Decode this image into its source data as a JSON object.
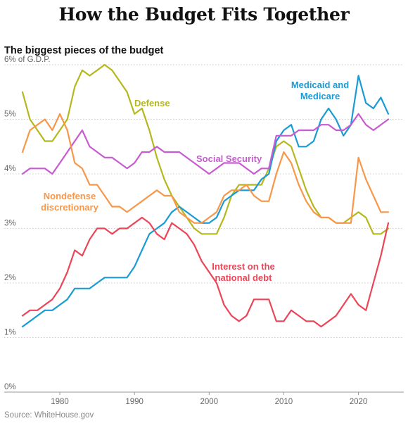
{
  "title": "How the Budget Fits Together",
  "subtitle": "The biggest pieces of the budget",
  "source": "Source: WhiteHouse.gov",
  "chart_data": {
    "type": "line",
    "title": "How the Budget Fits Together",
    "subtitle": "The biggest pieces of the budget",
    "ylabel": "% of G.D.P.",
    "xlim": [
      1975,
      2024
    ],
    "ylim": [
      0,
      6
    ],
    "y_ticks": [
      {
        "value": 0,
        "label": "0%"
      },
      {
        "value": 1,
        "label": "1%"
      },
      {
        "value": 2,
        "label": "2%"
      },
      {
        "value": 3,
        "label": "3%"
      },
      {
        "value": 4,
        "label": "4%"
      },
      {
        "value": 5,
        "label": "5%"
      },
      {
        "value": 6,
        "label": "6% of G.D.P."
      }
    ],
    "x_ticks": [
      {
        "value": 1980,
        "label": "1980"
      },
      {
        "value": 1990,
        "label": "1990"
      },
      {
        "value": 2000,
        "label": "2000"
      },
      {
        "value": 2010,
        "label": "2010"
      },
      {
        "value": 2020,
        "label": "2020"
      }
    ],
    "grid": "horizontal dotted",
    "x": [
      1975,
      1976,
      1977,
      1978,
      1979,
      1980,
      1981,
      1982,
      1983,
      1984,
      1985,
      1986,
      1987,
      1988,
      1989,
      1990,
      1991,
      1992,
      1993,
      1994,
      1995,
      1996,
      1997,
      1998,
      1999,
      2000,
      2001,
      2002,
      2003,
      2004,
      2005,
      2006,
      2007,
      2008,
      2009,
      2010,
      2011,
      2012,
      2013,
      2014,
      2015,
      2016,
      2017,
      2018,
      2019,
      2020,
      2021,
      2022,
      2023,
      2024
    ],
    "series": [
      {
        "name": "Defense",
        "label_lines": [
          "Defense"
        ],
        "color": "#b5b81c",
        "values": [
          5.5,
          5.0,
          4.8,
          4.6,
          4.6,
          4.8,
          5.0,
          5.6,
          5.9,
          5.8,
          5.9,
          6.0,
          5.9,
          5.7,
          5.5,
          5.1,
          5.2,
          4.8,
          4.3,
          3.9,
          3.6,
          3.4,
          3.2,
          3.0,
          2.9,
          2.9,
          2.9,
          3.2,
          3.6,
          3.8,
          3.8,
          3.8,
          3.8,
          4.1,
          4.5,
          4.6,
          4.5,
          4.1,
          3.7,
          3.4,
          3.2,
          3.2,
          3.1,
          3.1,
          3.2,
          3.3,
          3.2,
          2.9,
          2.9,
          3.0
        ]
      },
      {
        "name": "Medicaid and Medicare",
        "label_lines": [
          "Medicaid and",
          "Medicare"
        ],
        "color": "#1a9bd4",
        "values": [
          1.2,
          1.3,
          1.4,
          1.5,
          1.5,
          1.6,
          1.7,
          1.9,
          1.9,
          1.9,
          2.0,
          2.1,
          2.1,
          2.1,
          2.1,
          2.3,
          2.6,
          2.9,
          3.0,
          3.1,
          3.3,
          3.4,
          3.3,
          3.2,
          3.1,
          3.1,
          3.2,
          3.5,
          3.6,
          3.7,
          3.7,
          3.7,
          3.9,
          4.0,
          4.6,
          4.8,
          4.9,
          4.5,
          4.5,
          4.6,
          5.0,
          5.2,
          5.0,
          4.7,
          4.9,
          5.8,
          5.3,
          5.2,
          5.4,
          5.1
        ]
      },
      {
        "name": "Social Security",
        "label_lines": [
          "Social Security"
        ],
        "color": "#c85ad2",
        "values": [
          4.0,
          4.1,
          4.1,
          4.1,
          4.0,
          4.2,
          4.4,
          4.6,
          4.8,
          4.5,
          4.4,
          4.3,
          4.3,
          4.2,
          4.1,
          4.2,
          4.4,
          4.4,
          4.5,
          4.4,
          4.4,
          4.4,
          4.3,
          4.2,
          4.1,
          4.0,
          4.1,
          4.2,
          4.2,
          4.2,
          4.1,
          4.0,
          4.1,
          4.1,
          4.7,
          4.7,
          4.7,
          4.8,
          4.8,
          4.8,
          4.9,
          4.9,
          4.8,
          4.8,
          4.9,
          5.1,
          4.9,
          4.8,
          4.9,
          5.0
        ]
      },
      {
        "name": "Nondefense discretionary",
        "label_lines": [
          "Nondefense",
          "discretionary"
        ],
        "color": "#f7974a",
        "values": [
          4.4,
          4.8,
          4.9,
          5.0,
          4.8,
          5.1,
          4.8,
          4.2,
          4.1,
          3.8,
          3.8,
          3.6,
          3.4,
          3.4,
          3.3,
          3.4,
          3.5,
          3.6,
          3.7,
          3.6,
          3.6,
          3.3,
          3.2,
          3.1,
          3.1,
          3.2,
          3.3,
          3.6,
          3.7,
          3.7,
          3.8,
          3.6,
          3.5,
          3.5,
          4.0,
          4.4,
          4.2,
          3.8,
          3.5,
          3.3,
          3.2,
          3.2,
          3.1,
          3.1,
          3.1,
          4.3,
          3.9,
          3.6,
          3.3,
          3.3
        ]
      },
      {
        "name": "Interest on the national debt",
        "label_lines": [
          "Interest on the",
          "national debt"
        ],
        "color": "#eb4558",
        "values": [
          1.4,
          1.5,
          1.5,
          1.6,
          1.7,
          1.9,
          2.2,
          2.6,
          2.5,
          2.8,
          3.0,
          3.0,
          2.9,
          3.0,
          3.0,
          3.1,
          3.2,
          3.1,
          2.9,
          2.8,
          3.1,
          3.0,
          2.9,
          2.7,
          2.4,
          2.2,
          2.0,
          1.6,
          1.4,
          1.3,
          1.4,
          1.7,
          1.7,
          1.7,
          1.3,
          1.3,
          1.5,
          1.4,
          1.3,
          1.3,
          1.2,
          1.3,
          1.4,
          1.6,
          1.8,
          1.6,
          1.5,
          2.0,
          2.5,
          3.1
        ]
      }
    ]
  }
}
